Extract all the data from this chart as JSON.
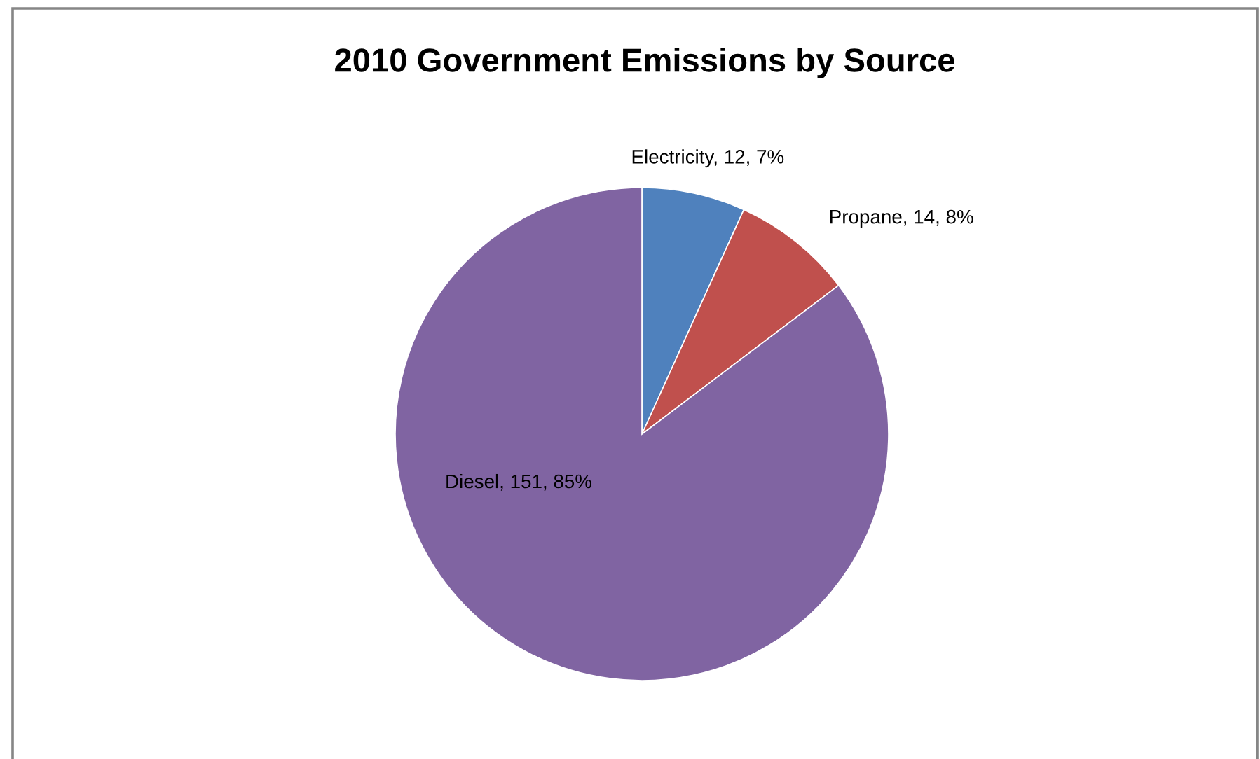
{
  "chart_data": {
    "type": "pie",
    "title": "2010 Government Emissions by Source",
    "categories": [
      "Electricity",
      "Propane",
      "Diesel"
    ],
    "values": [
      12,
      14,
      151
    ],
    "colors": [
      "#4f81bd",
      "#c0504d",
      "#8064a2"
    ],
    "value_labels": [
      "12, 7%",
      "14, 8%",
      "151, 85%"
    ]
  }
}
